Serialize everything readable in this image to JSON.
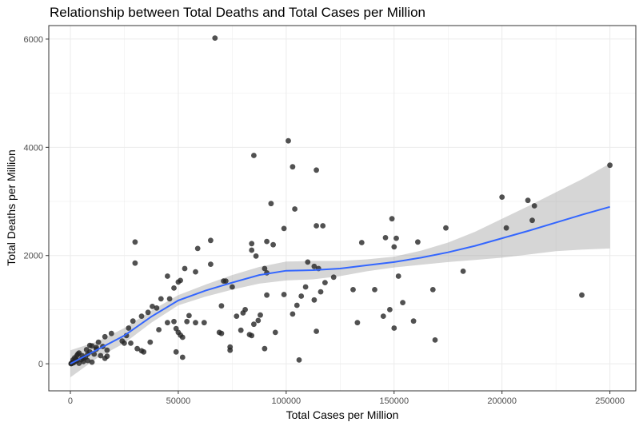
{
  "chart_data": {
    "type": "scatter",
    "title": "Relationship between Total Deaths and Total Cases per Million",
    "xlabel": "Total Cases per Million",
    "ylabel": "Total Deaths per Million",
    "xlim": [
      -10000,
      262000
    ],
    "ylim": [
      -500,
      6250
    ],
    "x_ticks": [
      0,
      50000,
      100000,
      150000,
      200000,
      250000
    ],
    "x_tick_labels": [
      "0",
      "50000",
      "100000",
      "150000",
      "200000",
      "250000"
    ],
    "y_ticks": [
      0,
      2000,
      4000,
      6000
    ],
    "y_tick_labels": [
      "0",
      "2000",
      "4000",
      "6000"
    ],
    "grid": true,
    "legend": "none",
    "colors": {
      "points": "#262626",
      "smooth_line": "#3366ff",
      "confidence_band": "#999999",
      "grid": "#ebebeb",
      "panel_border": "#333333"
    },
    "series": [
      {
        "points": [
          [
            67000,
            6020
          ],
          [
            101000,
            4120
          ],
          [
            85000,
            3850
          ],
          [
            103000,
            3640
          ],
          [
            114000,
            3580
          ],
          [
            250000,
            3670
          ],
          [
            200000,
            3080
          ],
          [
            93000,
            2960
          ],
          [
            212000,
            3020
          ],
          [
            215000,
            2920
          ],
          [
            214000,
            2650
          ],
          [
            104000,
            2860
          ],
          [
            114000,
            2550
          ],
          [
            117000,
            2550
          ],
          [
            149000,
            2680
          ],
          [
            174000,
            2510
          ],
          [
            99000,
            2500
          ],
          [
            202000,
            2510
          ],
          [
            65000,
            2280
          ],
          [
            91000,
            2260
          ],
          [
            84000,
            2220
          ],
          [
            94000,
            2200
          ],
          [
            135000,
            2240
          ],
          [
            146000,
            2330
          ],
          [
            151000,
            2320
          ],
          [
            30000,
            2250
          ],
          [
            84000,
            2100
          ],
          [
            86000,
            1990
          ],
          [
            150000,
            2160
          ],
          [
            161000,
            2250
          ],
          [
            59000,
            2130
          ],
          [
            90000,
            1760
          ],
          [
            91000,
            1680
          ],
          [
            65000,
            1840
          ],
          [
            53000,
            1760
          ],
          [
            58000,
            1700
          ],
          [
            72000,
            1530
          ],
          [
            71000,
            1530
          ],
          [
            30000,
            1860
          ],
          [
            110000,
            1880
          ],
          [
            113000,
            1800
          ],
          [
            115000,
            1760
          ],
          [
            122000,
            1600
          ],
          [
            118000,
            1500
          ],
          [
            131000,
            1370
          ],
          [
            141000,
            1370
          ],
          [
            152000,
            1620
          ],
          [
            182000,
            1710
          ],
          [
            168000,
            1370
          ],
          [
            45000,
            1620
          ],
          [
            50000,
            1510
          ],
          [
            51000,
            1540
          ],
          [
            48000,
            1400
          ],
          [
            46000,
            1200
          ],
          [
            42000,
            1200
          ],
          [
            40000,
            1030
          ],
          [
            38000,
            1060
          ],
          [
            36000,
            950
          ],
          [
            33000,
            880
          ],
          [
            29000,
            790
          ],
          [
            27000,
            660
          ],
          [
            26000,
            520
          ],
          [
            25000,
            380
          ],
          [
            24000,
            420
          ],
          [
            28000,
            380
          ],
          [
            31000,
            280
          ],
          [
            33000,
            240
          ],
          [
            34000,
            220
          ],
          [
            37000,
            400
          ],
          [
            41000,
            630
          ],
          [
            45000,
            760
          ],
          [
            48000,
            780
          ],
          [
            49000,
            650
          ],
          [
            50000,
            580
          ],
          [
            51000,
            530
          ],
          [
            52000,
            490
          ],
          [
            52000,
            120
          ],
          [
            49000,
            220
          ],
          [
            54000,
            780
          ],
          [
            55000,
            890
          ],
          [
            58000,
            760
          ],
          [
            62000,
            760
          ],
          [
            69000,
            580
          ],
          [
            70000,
            560
          ],
          [
            70000,
            1070
          ],
          [
            74000,
            250
          ],
          [
            74000,
            310
          ],
          [
            75000,
            1420
          ],
          [
            77000,
            880
          ],
          [
            79000,
            620
          ],
          [
            80000,
            940
          ],
          [
            81000,
            1000
          ],
          [
            83000,
            540
          ],
          [
            84000,
            520
          ],
          [
            85000,
            730
          ],
          [
            87000,
            800
          ],
          [
            88000,
            900
          ],
          [
            90000,
            280
          ],
          [
            91000,
            1270
          ],
          [
            95000,
            580
          ],
          [
            99000,
            1280
          ],
          [
            103000,
            920
          ],
          [
            105000,
            1080
          ],
          [
            106000,
            70
          ],
          [
            107000,
            1250
          ],
          [
            109000,
            1420
          ],
          [
            113000,
            1180
          ],
          [
            114000,
            600
          ],
          [
            116000,
            1330
          ],
          [
            133000,
            760
          ],
          [
            145000,
            880
          ],
          [
            148000,
            1000
          ],
          [
            150000,
            660
          ],
          [
            154000,
            1130
          ],
          [
            159000,
            790
          ],
          [
            169000,
            440
          ],
          [
            237000,
            1270
          ],
          [
            19000,
            560
          ],
          [
            16000,
            500
          ],
          [
            17000,
            250
          ],
          [
            15000,
            320
          ],
          [
            17000,
            140
          ],
          [
            16000,
            100
          ],
          [
            14000,
            150
          ],
          [
            12000,
            270
          ],
          [
            11000,
            180
          ],
          [
            9000,
            340
          ],
          [
            10000,
            330
          ],
          [
            9000,
            220
          ],
          [
            8000,
            180
          ],
          [
            7000,
            120
          ],
          [
            6000,
            100
          ],
          [
            5000,
            80
          ],
          [
            4000,
            200
          ],
          [
            3000,
            150
          ],
          [
            3000,
            60
          ],
          [
            2000,
            40
          ],
          [
            2000,
            110
          ],
          [
            1500,
            20
          ],
          [
            1000,
            30
          ],
          [
            700,
            10
          ],
          [
            500,
            5
          ],
          [
            300,
            2
          ],
          [
            8000,
            60
          ],
          [
            10000,
            30
          ],
          [
            6000,
            40
          ],
          [
            4000,
            10
          ],
          [
            13000,
            400
          ],
          [
            12000,
            300
          ],
          [
            3500,
            180
          ],
          [
            5500,
            150
          ],
          [
            7500,
            260
          ],
          [
            1200,
            70
          ],
          [
            2500,
            90
          ]
        ]
      }
    ],
    "smooth_fit": {
      "x": [
        0,
        12500,
        25000,
        37500,
        50000,
        62500,
        75000,
        87500,
        100000,
        112500,
        125000,
        137500,
        150000,
        162500,
        175000,
        187500,
        200000,
        212500,
        225000,
        237500,
        250000
      ],
      "y": [
        0,
        260,
        520,
        870,
        1170,
        1350,
        1500,
        1640,
        1720,
        1730,
        1760,
        1820,
        1880,
        1960,
        2060,
        2180,
        2320,
        2460,
        2610,
        2760,
        2900
      ],
      "lower": [
        -250,
        110,
        380,
        760,
        1080,
        1240,
        1370,
        1480,
        1540,
        1560,
        1620,
        1710,
        1780,
        1830,
        1880,
        1920,
        1960,
        2020,
        2080,
        2110,
        2130
      ],
      "upper": [
        250,
        410,
        660,
        980,
        1270,
        1460,
        1640,
        1790,
        1890,
        1900,
        1900,
        1930,
        1980,
        2090,
        2240,
        2440,
        2680,
        2920,
        3170,
        3420,
        3700
      ]
    }
  }
}
